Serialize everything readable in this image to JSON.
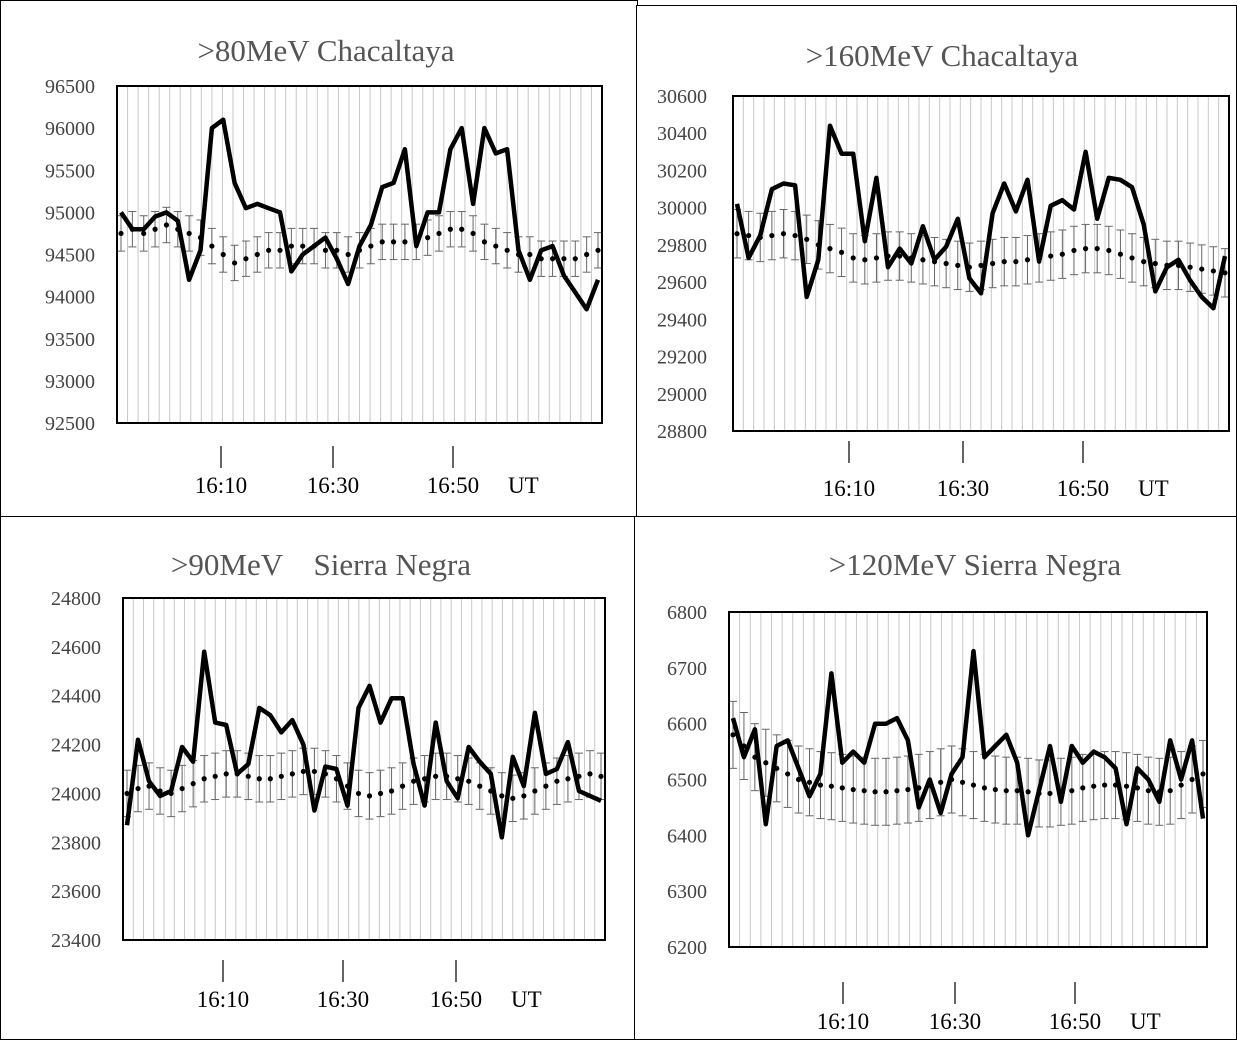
{
  "colors": {
    "series": "#000000",
    "grid": "#c8c8c8",
    "errorbar": "#666666",
    "title": "#555555"
  },
  "chart_data": [
    {
      "type": "line",
      "title": ">80MeV Chacaltaya",
      "ylim": [
        92500,
        96500
      ],
      "y_ticks": [
        "96500",
        "96000",
        "95500",
        "95000",
        "94500",
        "94000",
        "93500",
        "93000",
        "92500"
      ],
      "x_ticks": [
        "16:10",
        "16:30",
        "16:50"
      ],
      "x_unit": "UT",
      "series": [
        {
          "values": [
            95000,
            94800,
            94800,
            94950,
            95000,
            94900,
            94200,
            94550,
            96000,
            96100,
            95350,
            95050,
            95100,
            95050,
            95000,
            94300,
            94500,
            94600,
            94700,
            94450,
            94150,
            94600,
            94850,
            95300,
            95350,
            95750,
            94600,
            95000,
            95000,
            95750,
            96000,
            95100,
            96000,
            95700,
            95750,
            94550,
            94200,
            94550,
            94600,
            94250,
            94050,
            93850,
            94200
          ]
        },
        {
          "values": [
            94750,
            94800,
            94750,
            94800,
            94850,
            94800,
            94750,
            94700,
            94600,
            94500,
            94400,
            94450,
            94500,
            94550,
            94550,
            94600,
            94600,
            94600,
            94550,
            94550,
            94500,
            94550,
            94600,
            94650,
            94650,
            94650,
            94650,
            94700,
            94750,
            94800,
            94800,
            94750,
            94650,
            94600,
            94550,
            94500,
            94500,
            94450,
            94450,
            94450,
            94450,
            94500,
            94550
          ],
          "err": 210
        }
      ]
    },
    {
      "type": "line",
      "title": ">160MeV Chacaltaya",
      "ylim": [
        28800,
        30600
      ],
      "y_ticks": [
        "30600",
        "30400",
        "30200",
        "30000",
        "29800",
        "29600",
        "29400",
        "29200",
        "29000",
        "28800"
      ],
      "x_ticks": [
        "16:10",
        "16:30",
        "16:50"
      ],
      "x_unit": "UT",
      "series": [
        {
          "values": [
            30020,
            29730,
            29850,
            30100,
            30130,
            30120,
            29520,
            29720,
            30440,
            30290,
            30290,
            29820,
            30160,
            29680,
            29780,
            29700,
            29900,
            29720,
            29790,
            29940,
            29620,
            29540,
            29970,
            30130,
            29980,
            30150,
            29710,
            30010,
            30040,
            29990,
            30300,
            29940,
            30160,
            30150,
            30110,
            29910,
            29550,
            29680,
            29720,
            29610,
            29520,
            29460,
            29740
          ]
        },
        {
          "values": [
            29860,
            29850,
            29840,
            29850,
            29860,
            29850,
            29830,
            29800,
            29780,
            29760,
            29730,
            29720,
            29730,
            29740,
            29740,
            29730,
            29720,
            29710,
            29700,
            29690,
            29680,
            29690,
            29700,
            29710,
            29710,
            29720,
            29730,
            29740,
            29750,
            29770,
            29780,
            29780,
            29770,
            29750,
            29730,
            29710,
            29700,
            29690,
            29690,
            29680,
            29670,
            29660,
            29650
          ],
          "err": 130
        }
      ]
    },
    {
      "type": "line",
      "title": ">90MeV　Sierra Negra",
      "ylim": [
        23400,
        24800
      ],
      "y_ticks": [
        "24800",
        "24600",
        "24400",
        "24200",
        "24000",
        "23800",
        "23600",
        "23400"
      ],
      "x_ticks": [
        "16:10",
        "16:30",
        "16:50"
      ],
      "x_unit": "UT",
      "series": [
        {
          "values": [
            23870,
            24220,
            24050,
            23990,
            24010,
            24190,
            24130,
            24580,
            24290,
            24280,
            24080,
            24120,
            24350,
            24320,
            24250,
            24300,
            24200,
            23930,
            24110,
            24100,
            23950,
            24350,
            24440,
            24290,
            24390,
            24390,
            24120,
            23950,
            24290,
            24050,
            23980,
            24190,
            24130,
            24080,
            23820,
            24150,
            24030,
            24330,
            24080,
            24100,
            24210,
            24010,
            23990,
            23970
          ]
        },
        {
          "values": [
            24000,
            24020,
            24030,
            24010,
            24000,
            24020,
            24040,
            24060,
            24070,
            24080,
            24080,
            24070,
            24060,
            24060,
            24070,
            24080,
            24090,
            24090,
            24080,
            24060,
            24030,
            24000,
            23990,
            24000,
            24010,
            24030,
            24050,
            24060,
            24070,
            24070,
            24060,
            24050,
            24030,
            24010,
            23990,
            23980,
            23990,
            24010,
            24030,
            24050,
            24060,
            24070,
            24080,
            24070
          ],
          "err": 95
        }
      ]
    },
    {
      "type": "line",
      "title": ">120MeV Sierra Negra",
      "ylim": [
        6200,
        6800
      ],
      "y_ticks": [
        "6800",
        "6700",
        "6600",
        "6500",
        "6400",
        "6300",
        "6200"
      ],
      "x_ticks": [
        "16:10",
        "16:30",
        "16:50"
      ],
      "x_unit": "UT",
      "series": [
        {
          "values": [
            6610,
            6540,
            6590,
            6420,
            6560,
            6570,
            6520,
            6470,
            6510,
            6690,
            6530,
            6550,
            6530,
            6600,
            6600,
            6610,
            6570,
            6450,
            6500,
            6440,
            6510,
            6540,
            6730,
            6540,
            6560,
            6580,
            6530,
            6400,
            6480,
            6560,
            6460,
            6560,
            6530,
            6550,
            6540,
            6520,
            6420,
            6520,
            6500,
            6460,
            6570,
            6500,
            6570,
            6430
          ]
        },
        {
          "values": [
            6580,
            6560,
            6540,
            6530,
            6520,
            6510,
            6500,
            6495,
            6490,
            6488,
            6485,
            6482,
            6480,
            6478,
            6478,
            6480,
            6482,
            6485,
            6490,
            6495,
            6500,
            6495,
            6490,
            6485,
            6482,
            6480,
            6480,
            6478,
            6475,
            6475,
            6478,
            6480,
            6485,
            6488,
            6490,
            6490,
            6488,
            6485,
            6480,
            6478,
            6480,
            6490,
            6500,
            6510
          ],
          "err": 60
        }
      ]
    }
  ]
}
